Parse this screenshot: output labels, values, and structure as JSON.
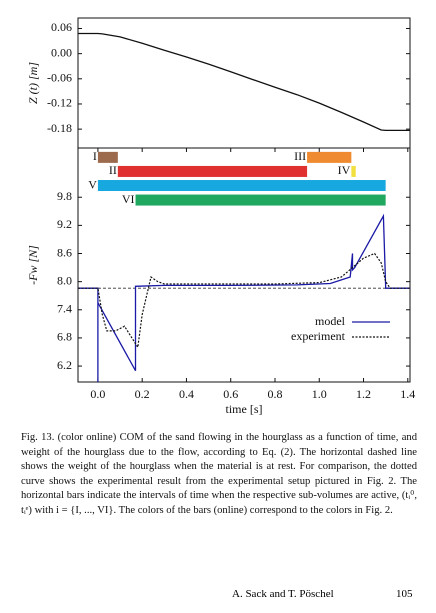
{
  "chart_data": [
    {
      "type": "line",
      "ylabel": "Z (t) [m]",
      "xlim": [
        -0.09,
        1.41
      ],
      "ylim": [
        -0.225,
        0.085
      ],
      "yticks": [
        0.06,
        {
          "value": 0,
          "label": "0.00"
        },
        -0.06,
        -0.12,
        -0.18
      ],
      "series": [
        {
          "name": "Z(t)",
          "color": "#111111",
          "x": [
            -0.09,
            0,
            0.02,
            0.1,
            0.2,
            0.3,
            0.4,
            0.5,
            0.6,
            0.7,
            0.8,
            0.9,
            1.0,
            1.1,
            1.2,
            1.28,
            1.3,
            1.41
          ],
          "values": [
            0.048,
            0.048,
            0.047,
            0.04,
            0.025,
            0.008,
            -0.008,
            -0.025,
            -0.043,
            -0.062,
            -0.08,
            -0.098,
            -0.118,
            -0.14,
            -0.163,
            -0.182,
            -0.183,
            -0.183
          ]
        }
      ]
    },
    {
      "type": "line",
      "xlabel": "time [s]",
      "ylabel": "-Fw [N]",
      "xlim": [
        -0.09,
        1.41
      ],
      "ylim": [
        5.86,
        10.85
      ],
      "xticks": [
        {
          "value": 0,
          "label": "0.0"
        },
        0.2,
        0.4,
        0.6,
        0.8,
        {
          "value": 1,
          "label": "1.0"
        },
        1.2,
        1.4
      ],
      "yticks": [
        9.8,
        9.2,
        8.6,
        {
          "value": 8,
          "label": "8.0"
        },
        7.4,
        6.8,
        6.2
      ],
      "hline": 7.86,
      "bars": [
        {
          "name": "I",
          "start": 0.0,
          "end": 0.09,
          "y": 10.65,
          "color": "#9c6b4e"
        },
        {
          "name": "II",
          "start": 0.09,
          "end": 0.945,
          "y": 10.35,
          "color": "#e03030"
        },
        {
          "name": "III",
          "start": 0.945,
          "end": 1.145,
          "y": 10.65,
          "color": "#f08a30"
        },
        {
          "name": "IV",
          "start": 1.145,
          "end": 1.165,
          "y": 10.35,
          "color": "#f0e040"
        },
        {
          "name": "V",
          "start": 0.0,
          "end": 1.3,
          "y": 10.05,
          "color": "#18a8e0"
        },
        {
          "name": "VI",
          "start": 0.17,
          "end": 1.3,
          "y": 9.74,
          "color": "#20a860"
        }
      ],
      "series": [
        {
          "name": "model",
          "color": "#1a1aa6",
          "dash": false,
          "x": [
            -0.09,
            0,
            0,
            0,
            0.17,
            0.17,
            0.3,
            0.6,
            0.9,
            1.05,
            1.14,
            1.15,
            1.15,
            1.16,
            1.29,
            1.3,
            1.41
          ],
          "values": [
            7.86,
            7.86,
            5.86,
            7.55,
            6.1,
            7.9,
            7.92,
            7.92,
            7.93,
            7.96,
            8.1,
            8.6,
            8.25,
            8.3,
            9.4,
            7.86,
            7.86
          ]
        },
        {
          "name": "experiment",
          "color": "#111111",
          "dash": true,
          "x": [
            -0.09,
            0,
            0.02,
            0.04,
            0.08,
            0.12,
            0.18,
            0.2,
            0.24,
            0.27,
            0.3,
            0.5,
            0.8,
            1.0,
            1.1,
            1.15,
            1.2,
            1.25,
            1.28,
            1.3,
            1.32,
            1.41
          ],
          "values": [
            7.86,
            7.86,
            7.3,
            6.95,
            6.95,
            7.05,
            6.6,
            7.3,
            8.1,
            8.0,
            7.95,
            7.95,
            7.95,
            7.98,
            8.1,
            8.3,
            8.5,
            8.6,
            8.4,
            8.0,
            7.86,
            7.86
          ]
        }
      ]
    }
  ],
  "caption": "Fig. 13. (color online) COM of the sand flowing in the hourglass as a function of time, and weight of the hourglass due to the flow, according to Eq. (2). The horizontal dashed line shows the weight of the hourglass when the material is at rest. For comparison, the dotted curve shows the experimental result from the experimental setup pictured in Fig. 2. The horizontal bars indicate the intervals of time when the respective sub-volumes are active, (tᵢ⁰, tᵢᵉ) with i = {I, ..., VI}. The colors of the bars (online) correspond to the colors in Fig. 2.",
  "footer": {
    "authors": "A. Sack and T. Pöschel",
    "page": "105"
  }
}
